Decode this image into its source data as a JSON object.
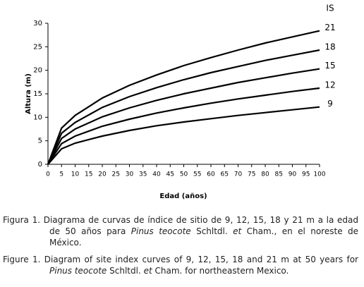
{
  "chart_data": {
    "type": "line",
    "x_label": "Edad (años)",
    "y_label": "Altura (m)",
    "legend_title": "IS",
    "x": [
      0,
      5,
      10,
      20,
      30,
      40,
      50,
      60,
      70,
      80,
      90,
      100
    ],
    "series": [
      {
        "name": "21",
        "color": "#000000",
        "values": [
          0,
          7.7,
          10.4,
          14.1,
          16.8,
          19.0,
          21,
          22.7,
          24.3,
          25.8,
          27.1,
          28.4
        ]
      },
      {
        "name": "18",
        "color": "#000000",
        "values": [
          0,
          6.6,
          8.9,
          12.1,
          14.4,
          16.3,
          18,
          19.5,
          20.8,
          22.1,
          23.2,
          24.3
        ]
      },
      {
        "name": "15",
        "color": "#000000",
        "values": [
          0,
          5.5,
          7.5,
          10.1,
          12.0,
          13.6,
          15,
          16.2,
          17.4,
          18.4,
          19.4,
          20.3
        ]
      },
      {
        "name": "12",
        "color": "#000000",
        "values": [
          0,
          4.4,
          6.0,
          8.1,
          9.6,
          10.9,
          12,
          13.0,
          13.9,
          14.7,
          15.5,
          16.2
        ]
      },
      {
        "name": "9",
        "color": "#000000",
        "values": [
          0,
          3.3,
          4.5,
          6.0,
          7.2,
          8.2,
          9,
          9.7,
          10.4,
          11.0,
          11.6,
          12.2
        ]
      }
    ],
    "xlim": [
      0,
      100
    ],
    "xticks": [
      0,
      5,
      10,
      15,
      20,
      25,
      30,
      35,
      40,
      45,
      50,
      55,
      60,
      65,
      70,
      75,
      80,
      85,
      90,
      95,
      100
    ],
    "ylim": [
      0,
      30
    ],
    "yticks": [
      0,
      5,
      10,
      15,
      20,
      25,
      30
    ],
    "grid": false
  },
  "caption": [
    {
      "label": "Figura 1.",
      "segments": [
        {
          "text": "Diagrama de curvas de índice de sitio de 9, 12, 15, 18 y 21 m a la edad de 50 años para "
        },
        {
          "text": "Pinus teocote",
          "italic": true
        },
        {
          "text": " Schltdl. "
        },
        {
          "text": "et",
          "italic": true
        },
        {
          "text": " Cham., en el noreste de México."
        }
      ]
    },
    {
      "label": "Figure 1.",
      "segments": [
        {
          "text": "Diagram of site index curves of 9, 12, 15, 18 and 21 m at 50 years for "
        },
        {
          "text": "Pinus teocote",
          "italic": true
        },
        {
          "text": " Schltdl. "
        },
        {
          "text": "et",
          "italic": true
        },
        {
          "text": " Cham. for northeastern Mexico."
        }
      ]
    }
  ]
}
